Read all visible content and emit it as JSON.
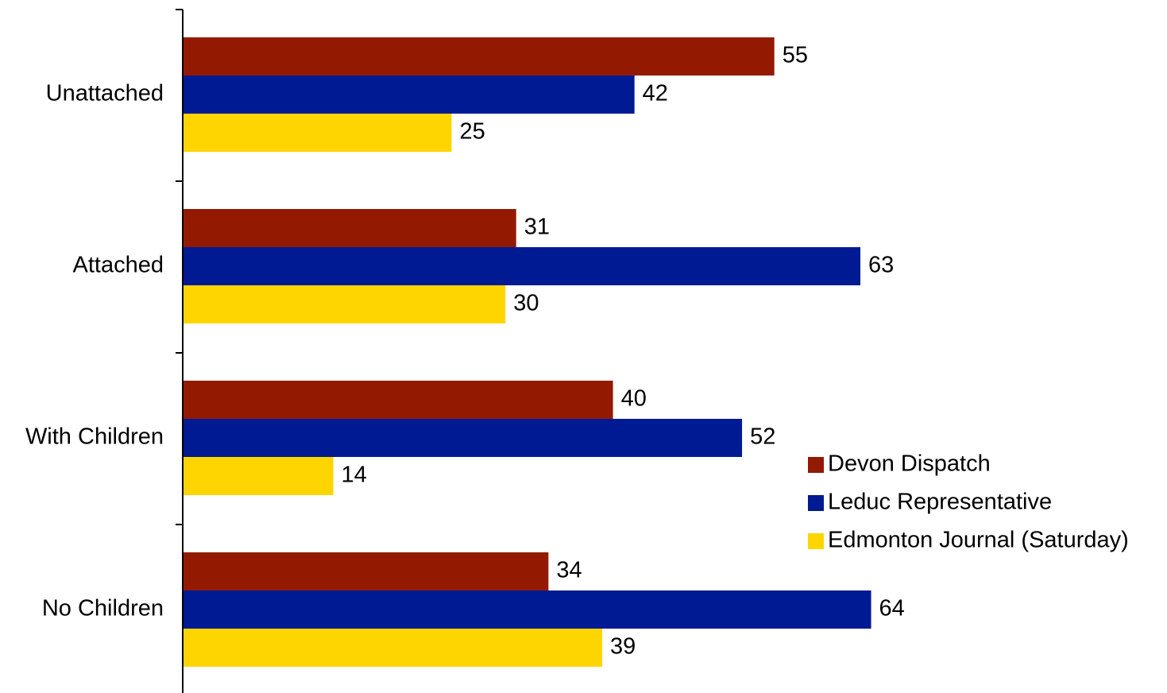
{
  "chart_data": {
    "type": "bar",
    "orientation": "horizontal",
    "categories": [
      "Unattached",
      "Attached",
      "With Children",
      "No Children"
    ],
    "series": [
      {
        "name": "Devon Dispatch",
        "color": "#931A00",
        "values": [
          55,
          31,
          40,
          34
        ]
      },
      {
        "name": "Leduc Representative",
        "color": "#001A93",
        "values": [
          42,
          63,
          52,
          64
        ]
      },
      {
        "name": "Edmonton Journal (Saturday)",
        "color": "#FFD500",
        "values": [
          25,
          30,
          14,
          39
        ]
      }
    ],
    "xlim": [
      0,
      100
    ],
    "grid": false,
    "legend_position": "right"
  }
}
